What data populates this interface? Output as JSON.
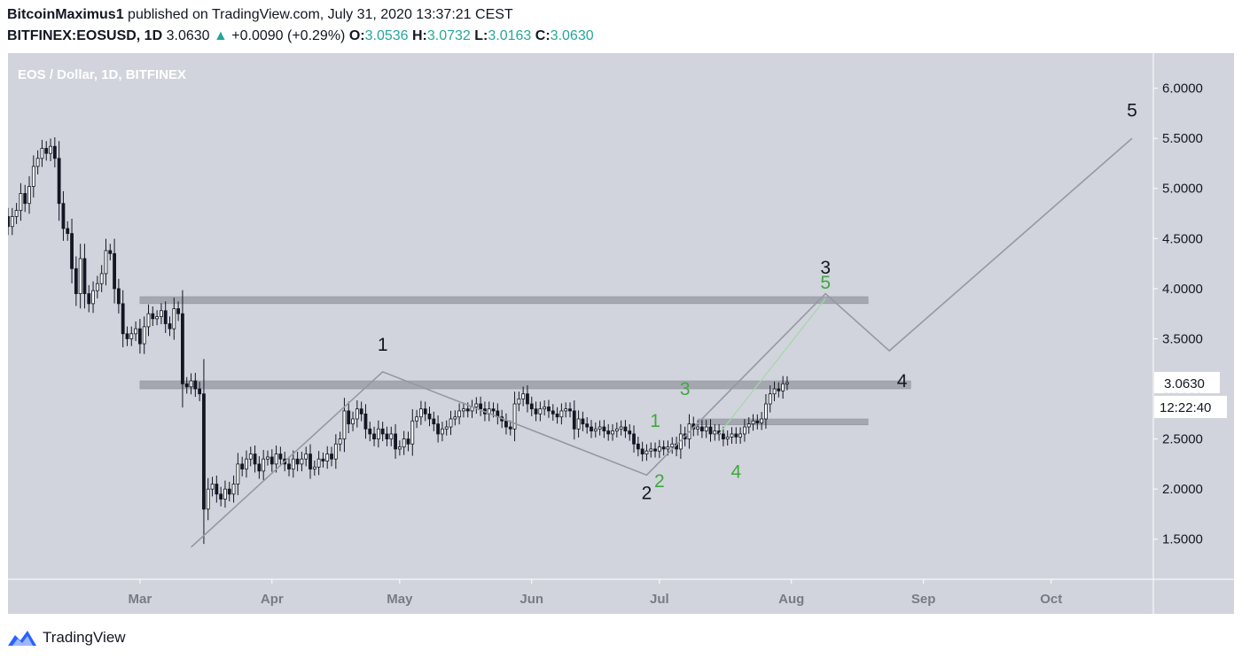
{
  "header": {
    "author": "BitcoinMaximus1",
    "published": " published on TradingView.com, July 31, 2020 13:37:21 CEST"
  },
  "ticker": {
    "symbol": "BITFINEX:EOSUSD, 1D",
    "last": "3.0630",
    "arrow": "▲",
    "change": "+0.0090 (+0.29%)",
    "o_label": "O:",
    "o": "3.0536",
    "h_label": "H:",
    "h": "3.0732",
    "l_label": "L:",
    "l": "3.0163",
    "c_label": "C:",
    "c": "3.0630"
  },
  "footer": {
    "brand": "TradingView"
  },
  "colors": {
    "plot_bg": "#d1d4dc",
    "candle": "#131722",
    "wave_line": "#9598a1",
    "green_label": "#3fa83f",
    "zone": "#9598a1",
    "up": "#26a69a"
  },
  "chart_data": {
    "type": "candlestick",
    "title": "EOS / Dollar, 1D, BITFINEX",
    "y_axis": {
      "range": [
        1.1,
        6.35
      ],
      "ticks": [
        "1.5000",
        "2.0000",
        "2.5000",
        "3.0000",
        "3.5000",
        "4.0000",
        "4.5000",
        "5.0000",
        "5.5000",
        "6.0000"
      ]
    },
    "x_axis": {
      "ticks": [
        "Mar",
        "Apr",
        "May",
        "Jun",
        "Jul",
        "Aug",
        "Sep",
        "Oct"
      ],
      "range": [
        "2020-01-30",
        "2020-10-25"
      ]
    },
    "price_label": "3.0630",
    "countdown_label": "12:22:40",
    "closes": [
      [
        "2020-01-30",
        4.62
      ],
      [
        "2020-01-31",
        4.72
      ],
      [
        "2020-02-01",
        4.78
      ],
      [
        "2020-02-02",
        4.95
      ],
      [
        "2020-02-03",
        4.85
      ],
      [
        "2020-02-04",
        5.02
      ],
      [
        "2020-02-05",
        5.22
      ],
      [
        "2020-02-06",
        5.3
      ],
      [
        "2020-02-07",
        5.4
      ],
      [
        "2020-02-08",
        5.35
      ],
      [
        "2020-02-09",
        5.42
      ],
      [
        "2020-02-10",
        5.3
      ],
      [
        "2020-02-11",
        4.85
      ],
      [
        "2020-02-12",
        4.6
      ],
      [
        "2020-02-13",
        4.55
      ],
      [
        "2020-02-14",
        4.2
      ],
      [
        "2020-02-15",
        3.95
      ],
      [
        "2020-02-16",
        4.3
      ],
      [
        "2020-02-17",
        3.95
      ],
      [
        "2020-02-18",
        3.85
      ],
      [
        "2020-02-19",
        3.98
      ],
      [
        "2020-02-20",
        4.05
      ],
      [
        "2020-02-21",
        4.15
      ],
      [
        "2020-02-22",
        4.38
      ],
      [
        "2020-02-23",
        4.35
      ],
      [
        "2020-02-24",
        4.0
      ],
      [
        "2020-02-25",
        3.85
      ],
      [
        "2020-02-26",
        3.55
      ],
      [
        "2020-02-27",
        3.5
      ],
      [
        "2020-02-28",
        3.55
      ],
      [
        "2020-02-29",
        3.6
      ],
      [
        "2020-03-01",
        3.45
      ],
      [
        "2020-03-02",
        3.62
      ],
      [
        "2020-03-03",
        3.75
      ],
      [
        "2020-03-04",
        3.7
      ],
      [
        "2020-03-05",
        3.72
      ],
      [
        "2020-03-06",
        3.78
      ],
      [
        "2020-03-07",
        3.65
      ],
      [
        "2020-03-08",
        3.6
      ],
      [
        "2020-03-09",
        3.8
      ],
      [
        "2020-03-10",
        3.75
      ],
      [
        "2020-03-11",
        3.05
      ],
      [
        "2020-03-12",
        3.02
      ],
      [
        "2020-03-13",
        3.08
      ],
      [
        "2020-03-14",
        3.0
      ],
      [
        "2020-03-15",
        2.95
      ],
      [
        "2020-03-16",
        1.8
      ],
      [
        "2020-03-17",
        2.0
      ],
      [
        "2020-03-18",
        2.05
      ],
      [
        "2020-03-19",
        1.95
      ],
      [
        "2020-03-20",
        1.9
      ],
      [
        "2020-03-21",
        2.0
      ],
      [
        "2020-03-22",
        1.95
      ],
      [
        "2020-03-23",
        2.05
      ],
      [
        "2020-03-24",
        2.25
      ],
      [
        "2020-03-25",
        2.2
      ],
      [
        "2020-03-26",
        2.3
      ],
      [
        "2020-03-27",
        2.35
      ],
      [
        "2020-03-28",
        2.25
      ],
      [
        "2020-03-29",
        2.18
      ],
      [
        "2020-03-30",
        2.3
      ],
      [
        "2020-03-31",
        2.32
      ],
      [
        "2020-04-01",
        2.25
      ],
      [
        "2020-04-02",
        2.35
      ],
      [
        "2020-04-03",
        2.3
      ],
      [
        "2020-04-04",
        2.25
      ],
      [
        "2020-04-05",
        2.2
      ],
      [
        "2020-04-06",
        2.3
      ],
      [
        "2020-04-07",
        2.25
      ],
      [
        "2020-04-08",
        2.3
      ],
      [
        "2020-04-09",
        2.35
      ],
      [
        "2020-04-10",
        2.2
      ],
      [
        "2020-04-11",
        2.22
      ],
      [
        "2020-04-12",
        2.3
      ],
      [
        "2020-04-13",
        2.28
      ],
      [
        "2020-04-14",
        2.35
      ],
      [
        "2020-04-15",
        2.3
      ],
      [
        "2020-04-16",
        2.45
      ],
      [
        "2020-04-17",
        2.5
      ],
      [
        "2020-04-18",
        2.78
      ],
      [
        "2020-04-19",
        2.65
      ],
      [
        "2020-04-20",
        2.7
      ],
      [
        "2020-04-21",
        2.8
      ],
      [
        "2020-04-22",
        2.75
      ],
      [
        "2020-04-23",
        2.6
      ],
      [
        "2020-04-24",
        2.55
      ],
      [
        "2020-04-25",
        2.5
      ],
      [
        "2020-04-26",
        2.6
      ],
      [
        "2020-04-27",
        2.55
      ],
      [
        "2020-04-28",
        2.5
      ],
      [
        "2020-04-29",
        2.55
      ],
      [
        "2020-04-30",
        2.4
      ],
      [
        "2020-05-01",
        2.42
      ],
      [
        "2020-05-02",
        2.5
      ],
      [
        "2020-05-03",
        2.45
      ],
      [
        "2020-05-04",
        2.68
      ],
      [
        "2020-05-05",
        2.72
      ],
      [
        "2020-05-06",
        2.8
      ],
      [
        "2020-05-07",
        2.75
      ],
      [
        "2020-05-08",
        2.7
      ],
      [
        "2020-05-09",
        2.65
      ],
      [
        "2020-05-10",
        2.55
      ],
      [
        "2020-05-11",
        2.6
      ],
      [
        "2020-05-12",
        2.62
      ],
      [
        "2020-05-13",
        2.7
      ],
      [
        "2020-05-14",
        2.72
      ],
      [
        "2020-05-15",
        2.78
      ],
      [
        "2020-05-16",
        2.8
      ],
      [
        "2020-05-17",
        2.78
      ],
      [
        "2020-05-18",
        2.82
      ],
      [
        "2020-05-19",
        2.85
      ],
      [
        "2020-05-20",
        2.8
      ],
      [
        "2020-05-21",
        2.75
      ],
      [
        "2020-05-22",
        2.8
      ],
      [
        "2020-05-23",
        2.78
      ],
      [
        "2020-05-24",
        2.72
      ],
      [
        "2020-05-25",
        2.68
      ],
      [
        "2020-05-26",
        2.62
      ],
      [
        "2020-05-27",
        2.6
      ],
      [
        "2020-05-28",
        2.85
      ],
      [
        "2020-05-29",
        2.9
      ],
      [
        "2020-05-30",
        2.95
      ],
      [
        "2020-05-31",
        2.85
      ],
      [
        "2020-06-01",
        2.8
      ],
      [
        "2020-06-02",
        2.75
      ],
      [
        "2020-06-03",
        2.8
      ],
      [
        "2020-06-04",
        2.82
      ],
      [
        "2020-06-05",
        2.78
      ],
      [
        "2020-06-06",
        2.75
      ],
      [
        "2020-06-07",
        2.72
      ],
      [
        "2020-06-08",
        2.78
      ],
      [
        "2020-06-09",
        2.8
      ],
      [
        "2020-06-10",
        2.78
      ],
      [
        "2020-06-11",
        2.6
      ],
      [
        "2020-06-12",
        2.7
      ],
      [
        "2020-06-13",
        2.65
      ],
      [
        "2020-06-14",
        2.62
      ],
      [
        "2020-06-15",
        2.58
      ],
      [
        "2020-06-16",
        2.6
      ],
      [
        "2020-06-17",
        2.62
      ],
      [
        "2020-06-18",
        2.58
      ],
      [
        "2020-06-19",
        2.55
      ],
      [
        "2020-06-20",
        2.58
      ],
      [
        "2020-06-21",
        2.6
      ],
      [
        "2020-06-22",
        2.62
      ],
      [
        "2020-06-23",
        2.58
      ],
      [
        "2020-06-24",
        2.55
      ],
      [
        "2020-06-25",
        2.45
      ],
      [
        "2020-06-26",
        2.4
      ],
      [
        "2020-06-27",
        2.35
      ],
      [
        "2020-06-28",
        2.38
      ],
      [
        "2020-06-29",
        2.4
      ],
      [
        "2020-06-30",
        2.38
      ],
      [
        "2020-07-01",
        2.42
      ],
      [
        "2020-07-02",
        2.4
      ],
      [
        "2020-07-03",
        2.42
      ],
      [
        "2020-07-04",
        2.45
      ],
      [
        "2020-07-05",
        2.4
      ],
      [
        "2020-07-06",
        2.55
      ],
      [
        "2020-07-07",
        2.5
      ],
      [
        "2020-07-08",
        2.65
      ],
      [
        "2020-07-09",
        2.6
      ],
      [
        "2020-07-10",
        2.62
      ],
      [
        "2020-07-11",
        2.58
      ],
      [
        "2020-07-12",
        2.62
      ],
      [
        "2020-07-13",
        2.55
      ],
      [
        "2020-07-14",
        2.58
      ],
      [
        "2020-07-15",
        2.55
      ],
      [
        "2020-07-16",
        2.5
      ],
      [
        "2020-07-17",
        2.52
      ],
      [
        "2020-07-18",
        2.55
      ],
      [
        "2020-07-19",
        2.52
      ],
      [
        "2020-07-20",
        2.55
      ],
      [
        "2020-07-21",
        2.62
      ],
      [
        "2020-07-22",
        2.65
      ],
      [
        "2020-07-23",
        2.68
      ],
      [
        "2020-07-24",
        2.66
      ],
      [
        "2020-07-25",
        2.7
      ],
      [
        "2020-07-26",
        2.85
      ],
      [
        "2020-07-27",
        2.95
      ],
      [
        "2020-07-28",
        3.0
      ],
      [
        "2020-07-29",
        2.98
      ],
      [
        "2020-07-30",
        3.05
      ],
      [
        "2020-07-31",
        3.063
      ]
    ],
    "zones": [
      {
        "from": "2020-03-01",
        "to": "2020-08-19",
        "low": 3.85,
        "high": 3.92
      },
      {
        "from": "2020-03-01",
        "to": "2020-08-29",
        "low": 3.0,
        "high": 3.08
      },
      {
        "from": "2020-07-10",
        "to": "2020-08-19",
        "low": 2.64,
        "high": 2.7
      }
    ],
    "wave_path": [
      [
        "2020-03-13",
        1.42
      ],
      [
        "2020-04-27",
        3.17
      ],
      [
        "2020-06-28",
        2.14
      ],
      [
        "2020-08-09",
        3.95
      ],
      [
        "2020-08-24",
        3.38
      ],
      [
        "2020-10-20",
        5.5
      ]
    ],
    "green_path": [
      [
        "2020-07-15",
        2.55
      ],
      [
        "2020-08-09",
        3.9
      ]
    ],
    "wave_labels": [
      {
        "text": "1",
        "date": "2020-04-27",
        "price": 3.38,
        "color": "black"
      },
      {
        "text": "2",
        "date": "2020-06-28",
        "price": 1.9,
        "color": "black"
      },
      {
        "text": "3",
        "date": "2020-08-09",
        "price": 4.15,
        "color": "black"
      },
      {
        "text": "4",
        "date": "2020-08-27",
        "price": 3.02,
        "color": "black"
      },
      {
        "text": "5",
        "date": "2020-10-20",
        "price": 5.72,
        "color": "black"
      },
      {
        "text": "1",
        "date": "2020-06-30",
        "price": 2.62,
        "color": "green"
      },
      {
        "text": "2",
        "date": "2020-07-01",
        "price": 2.02,
        "color": "green"
      },
      {
        "text": "3",
        "date": "2020-07-07",
        "price": 2.94,
        "color": "green"
      },
      {
        "text": "4",
        "date": "2020-07-19",
        "price": 2.11,
        "color": "green"
      },
      {
        "text": "5",
        "date": "2020-08-09",
        "price": 4.0,
        "color": "green"
      }
    ]
  }
}
